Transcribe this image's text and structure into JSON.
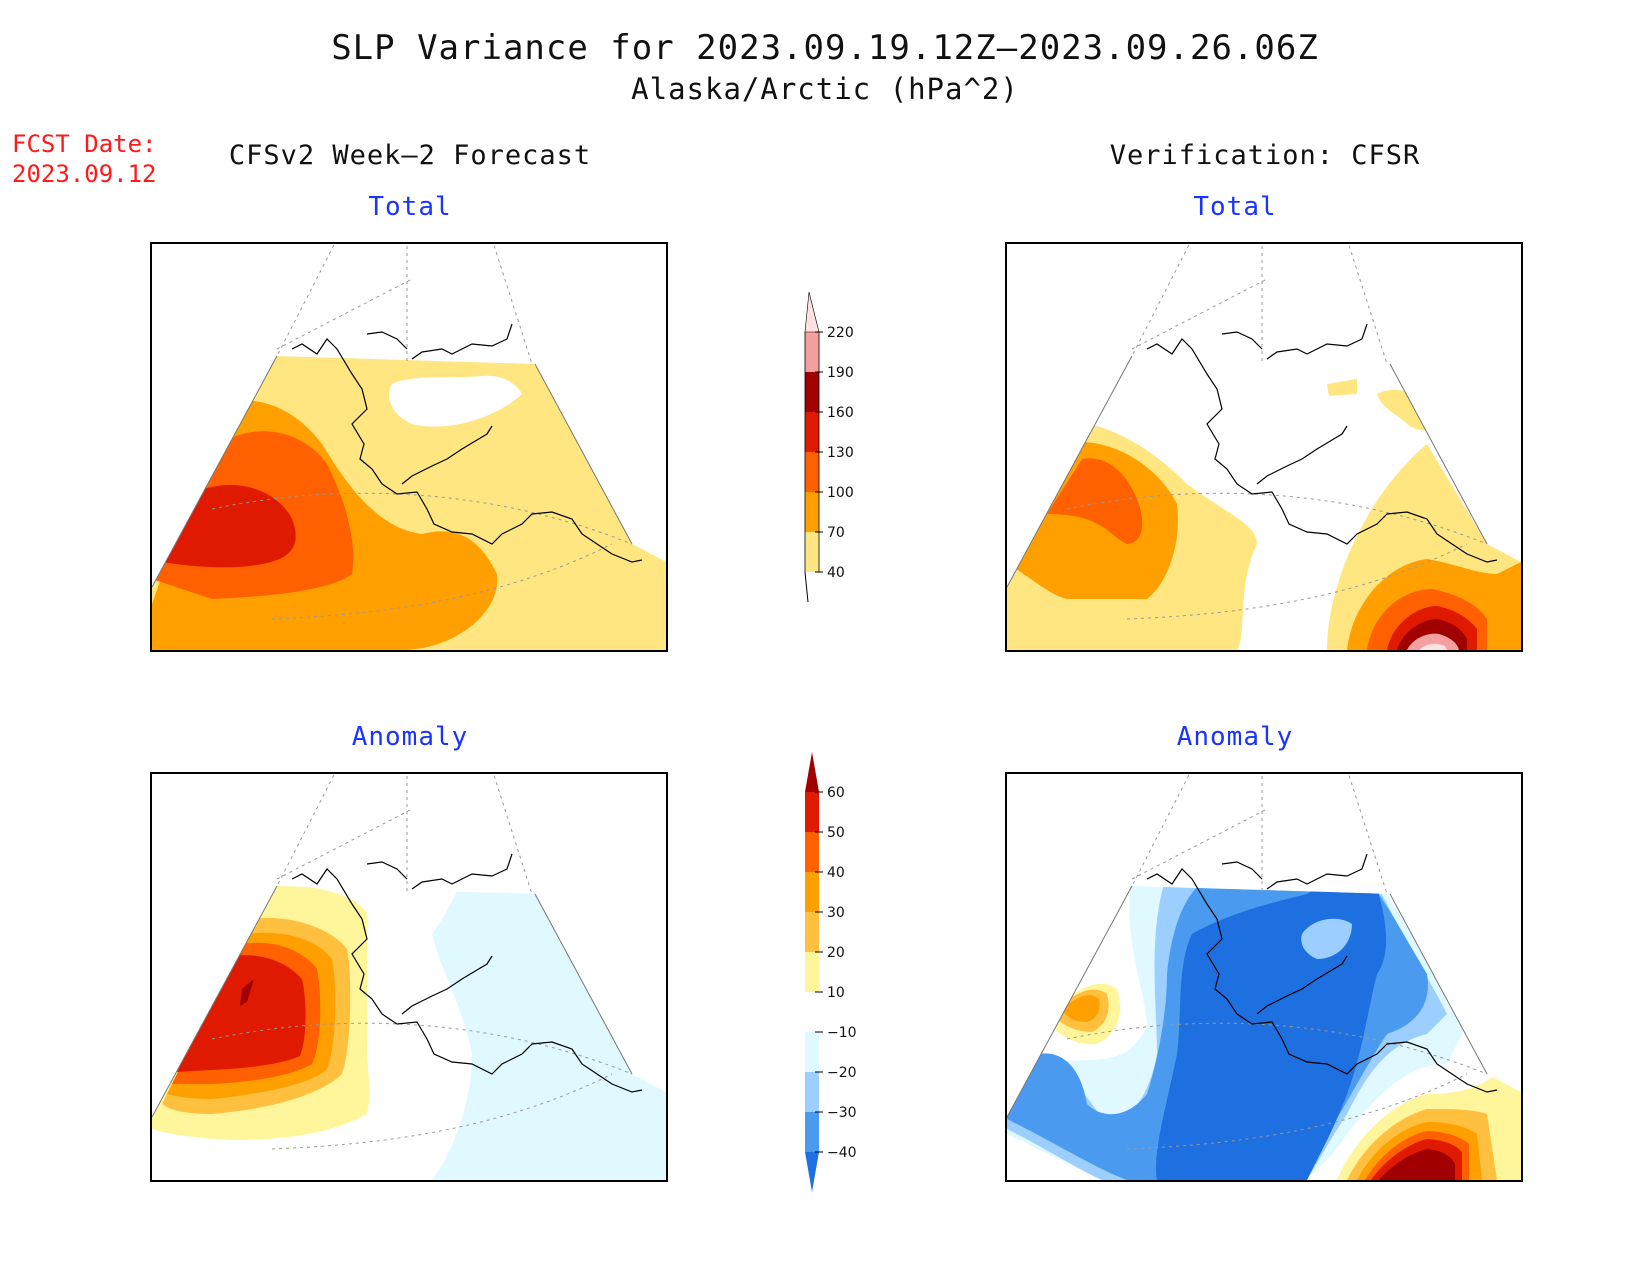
{
  "header": {
    "title": "SLP Variance for 2023.09.19.12Z—2023.09.26.06Z",
    "subtitle": "Alaska/Arctic (hPa^2)",
    "fcst_label": "FCST Date:",
    "fcst_date": "2023.09.12"
  },
  "columns": {
    "left": "CFSv2 Week—2 Forecast",
    "right": "Verification: CFSR"
  },
  "panels": {
    "forecast_total": "Total",
    "verif_total": "Total",
    "forecast_anomaly": "Anomaly",
    "verif_anomaly": "Anomaly"
  },
  "colorbars": {
    "total": {
      "levels": [
        "40",
        "70",
        "100",
        "130",
        "160",
        "190",
        "220"
      ],
      "colors": [
        "#ffe680",
        "#ffa000",
        "#ff6000",
        "#e01a00",
        "#a00000",
        "#f4a0a0",
        "#fde0e0"
      ]
    },
    "anomaly": {
      "levels": [
        "60",
        "50",
        "40",
        "30",
        "20",
        "10",
        "−10",
        "−20",
        "−30",
        "−40"
      ],
      "colors": [
        "#a00000",
        "#e01a00",
        "#ff6000",
        "#ffa000",
        "#ffc040",
        "#fff59a",
        "#ffffff",
        "#e0f8ff",
        "#9ccfff",
        "#4a9bf0",
        "#1e6fe0"
      ]
    }
  }
}
